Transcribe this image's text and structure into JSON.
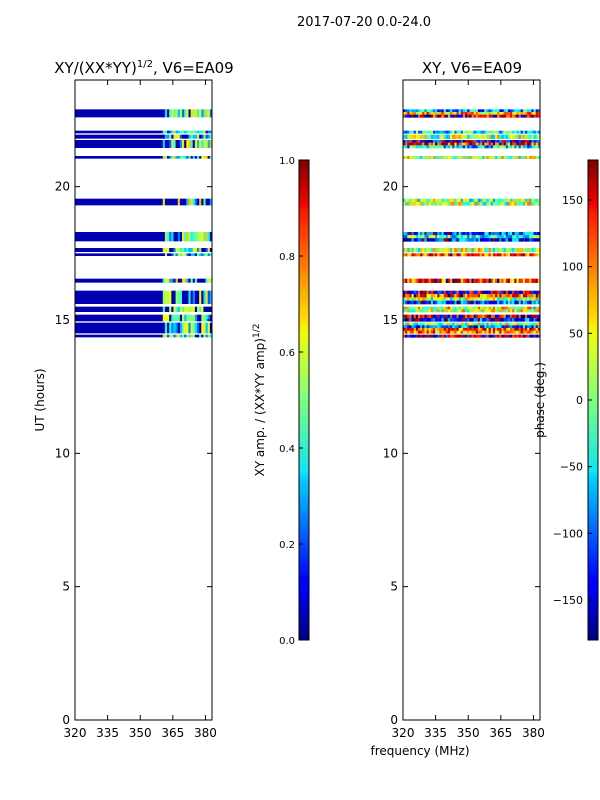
{
  "figure_title": "2017-07-20 0.0-24.0",
  "shared_xlabel": "frequency (MHz)",
  "chart_data": [
    {
      "type": "heatmap",
      "title_main": "XY/(XX*YY)",
      "title_sup": "1/2",
      "title_tail": ", V6=EA09",
      "xlabel": "",
      "ylabel": "UT (hours)",
      "xlim": [
        320,
        383
      ],
      "ylim": [
        0,
        24
      ],
      "xticks": [
        320,
        335,
        350,
        365,
        380
      ],
      "yticks": [
        0,
        5,
        10,
        15,
        20
      ],
      "colormap": "jet",
      "colorbar": {
        "label_main": "XY amp. / (XX*YY amp)",
        "label_sup": "1/2",
        "range": [
          0.0,
          1.0
        ],
        "ticks": [
          "0.0",
          "0.2",
          "0.4",
          "0.6",
          "0.8",
          "1.0"
        ]
      },
      "data_bands_ut_hours": [
        [
          22.6,
          22.9
        ],
        [
          22.0,
          22.1
        ],
        [
          21.8,
          21.95
        ],
        [
          21.45,
          21.75
        ],
        [
          21.05,
          21.15
        ],
        [
          19.3,
          19.55
        ],
        [
          17.95,
          18.3
        ],
        [
          17.55,
          17.7
        ],
        [
          17.4,
          17.5
        ],
        [
          16.4,
          16.55
        ],
        [
          15.6,
          16.1
        ],
        [
          15.3,
          15.5
        ],
        [
          14.95,
          15.2
        ],
        [
          14.5,
          14.9
        ],
        [
          14.35,
          14.45
        ]
      ],
      "band_value_low_freq": 0.05,
      "band_value_high_freq_range": [
        0.2,
        0.7
      ],
      "high_freq_start_mhz": 361
    },
    {
      "type": "heatmap",
      "title_main": "XY, V6=EA09",
      "xlabel": "frequency (MHz)",
      "ylabel": "",
      "xlim": [
        320,
        383
      ],
      "ylim": [
        0,
        24
      ],
      "xticks": [
        320,
        335,
        350,
        365,
        380
      ],
      "yticks": [
        0,
        5,
        10,
        15,
        20
      ],
      "colormap": "jet",
      "colorbar": {
        "label_main": "phase (deg.)",
        "range": [
          -180,
          180
        ],
        "ticks": [
          "−150",
          "−100",
          "−50",
          "0",
          "50",
          "100",
          "150"
        ]
      },
      "data_bands_ut_hours": [
        [
          22.6,
          22.9
        ],
        [
          22.0,
          22.1
        ],
        [
          21.8,
          21.95
        ],
        [
          21.45,
          21.75
        ],
        [
          21.05,
          21.15
        ],
        [
          19.3,
          19.55
        ],
        [
          17.95,
          18.3
        ],
        [
          17.55,
          17.7
        ],
        [
          17.4,
          17.5
        ],
        [
          16.4,
          16.55
        ],
        [
          15.6,
          16.1
        ],
        [
          15.3,
          15.5
        ],
        [
          14.95,
          15.2
        ],
        [
          14.5,
          14.9
        ],
        [
          14.35,
          14.45
        ]
      ],
      "phase_value_range_deg": [
        -180,
        180
      ]
    }
  ]
}
